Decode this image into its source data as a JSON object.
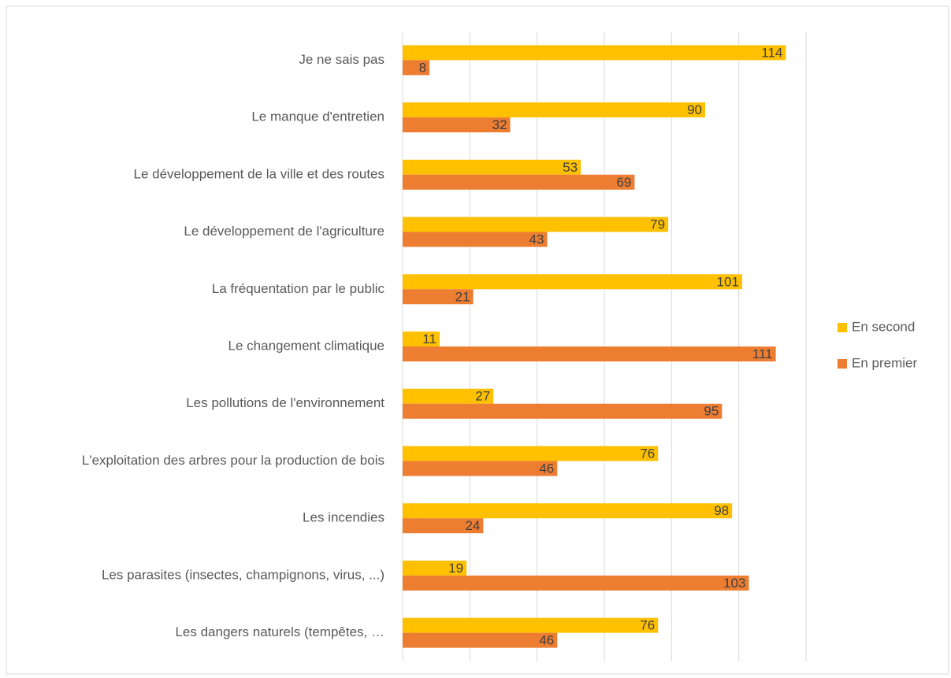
{
  "chart_data": {
    "type": "bar",
    "orientation": "horizontal",
    "categories": [
      "Je ne sais pas",
      "Le manque d'entretien",
      "Le développement de la ville et des routes",
      "Le développement de l'agriculture",
      "La fréquentation par le public",
      "Le changement climatique",
      "Les pollutions de l'environnement",
      "L'exploitation des arbres pour la production de bois",
      "Les incendies",
      "Les parasites (insectes, champignons, virus, ...)",
      "Les dangers naturels (tempêtes, …"
    ],
    "series": [
      {
        "name": "En second",
        "color": "#ffc000",
        "values": [
          114,
          90,
          53,
          79,
          101,
          11,
          27,
          76,
          98,
          19,
          76
        ]
      },
      {
        "name": "En premier",
        "color": "#ed7d31",
        "values": [
          8,
          32,
          69,
          43,
          21,
          111,
          95,
          46,
          24,
          103,
          46
        ]
      }
    ],
    "xlim": [
      0,
      120
    ],
    "xticks": [
      0,
      20,
      40,
      60,
      80,
      100,
      120
    ],
    "grid": true,
    "legend": "right"
  }
}
